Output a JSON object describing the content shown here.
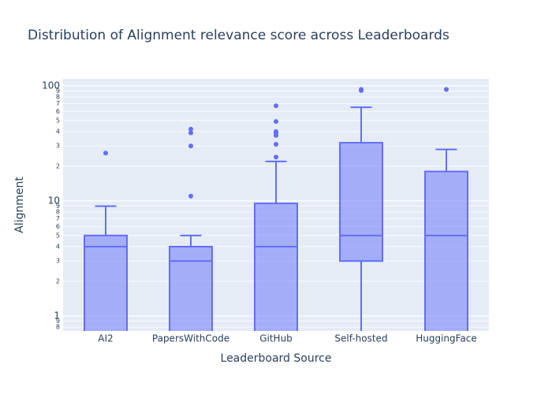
{
  "chart_data": {
    "type": "box",
    "title": "Distribution of Alignment relevance score across Leaderboards",
    "x_label": "Leaderboard Source",
    "y_label": "Alignment",
    "log_y": true,
    "grid": true,
    "color": "#636efa",
    "categories": [
      "AI2",
      "PapersWithCode",
      "GitHub",
      "Self-hosted",
      "HuggingFace"
    ],
    "min": [
      0.5,
      0.5,
      0.5,
      0.5,
      0.5
    ],
    "q1": [
      0.5,
      0.5,
      0.5,
      3,
      0.5
    ],
    "median": [
      4,
      3,
      4,
      5,
      5
    ],
    "q3": [
      5,
      4,
      9.5,
      32,
      18
    ],
    "max": [
      9,
      5,
      22,
      65,
      28
    ],
    "outliers": [
      [
        26
      ],
      [
        11,
        30,
        39,
        42
      ],
      [
        24,
        31,
        37,
        39,
        40,
        49,
        67
      ],
      [
        91,
        93
      ],
      [
        93
      ]
    ],
    "ylim": [
      0.74,
      115
    ],
    "yticks": [
      {
        "value": 0.8,
        "label": "8"
      },
      {
        "value": 0.9,
        "label": "9"
      },
      1,
      2,
      3,
      4,
      5,
      6,
      7,
      8,
      9,
      10,
      {
        "value": 20,
        "label": "2"
      },
      {
        "value": 30,
        "label": "3"
      },
      {
        "value": 40,
        "label": "4"
      },
      {
        "value": 50,
        "label": "5"
      },
      {
        "value": 60,
        "label": "6"
      },
      {
        "value": 70,
        "label": "7"
      },
      {
        "value": 80,
        "label": "8"
      },
      {
        "value": 90,
        "label": "9"
      },
      100
    ]
  }
}
